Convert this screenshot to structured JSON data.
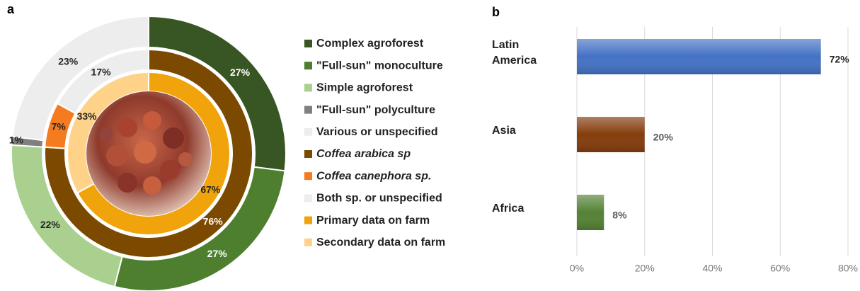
{
  "chart_data": [
    {
      "type": "donut",
      "panel_label": "a",
      "rings": [
        {
          "categories": [
            "Complex agroforest",
            "\"Full-sun\" monoculture",
            "Simple agroforest",
            "\"Full-sun\" polyculture",
            "Various or unspecified"
          ],
          "values": [
            27,
            27,
            22,
            1,
            23
          ],
          "value_labels": [
            "27%",
            "27%",
            "22%",
            "1%",
            "23%"
          ],
          "colors": [
            "#375623",
            "#4e7f2f",
            "#a9d08e",
            "#808080",
            "#ededed"
          ],
          "italic": [
            false,
            false,
            false,
            false,
            false
          ]
        },
        {
          "categories": [
            "Coffea arabica sp",
            "Coffea canephora sp.",
            "Both sp. or unspecified"
          ],
          "values": [
            76,
            7,
            17
          ],
          "value_labels": [
            "76%",
            "7%",
            "17%"
          ],
          "colors": [
            "#7b4a00",
            "#f47b20",
            "#ededed"
          ],
          "italic": [
            true,
            true,
            false
          ]
        },
        {
          "categories": [
            "Primary data on farm",
            "Secondary data on farm"
          ],
          "values": [
            67,
            33
          ],
          "value_labels": [
            "67%",
            "33%"
          ],
          "colors": [
            "#f0a30a",
            "#ffd28a"
          ],
          "italic": [
            false,
            false
          ]
        }
      ]
    },
    {
      "type": "bar",
      "panel_label": "b",
      "orientation": "horizontal",
      "categories": [
        "Latin America",
        "Asia",
        "Africa"
      ],
      "values": [
        72,
        20,
        8
      ],
      "value_labels": [
        "72%",
        "20%",
        "8%"
      ],
      "colors": [
        "#4472c4",
        "#843c0c",
        "#548235"
      ],
      "xlim": [
        0,
        80
      ],
      "xticks": [
        {
          "value": 0,
          "label": "0%"
        },
        {
          "value": 20,
          "label": "20%"
        },
        {
          "value": 40,
          "label": "40%"
        },
        {
          "value": 60,
          "label": "60%"
        },
        {
          "value": 80,
          "label": "80%"
        }
      ],
      "grid": true
    }
  ]
}
